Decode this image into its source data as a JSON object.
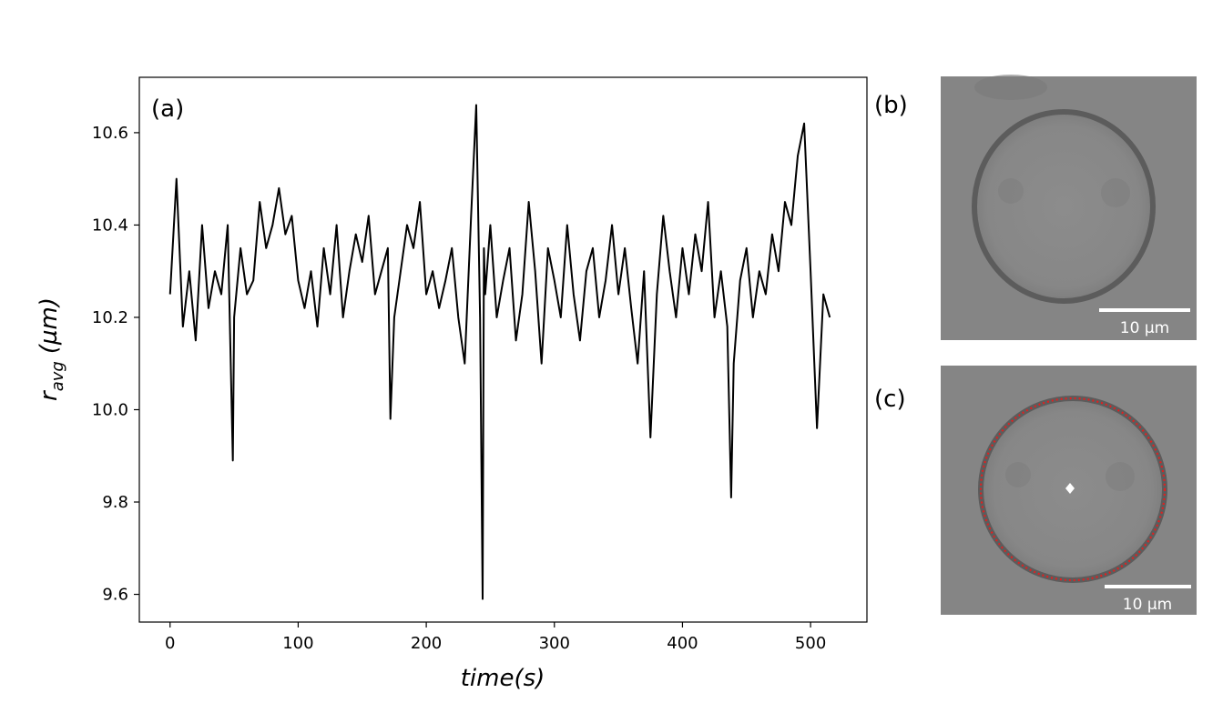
{
  "chart_data": {
    "type": "line",
    "xlabel": "time(s)",
    "ylabel_main": "r",
    "ylabel_sub": "avg",
    "ylabel_unit": "(µm)",
    "xlim": [
      -24,
      544
    ],
    "ylim": [
      9.54,
      10.72
    ],
    "x_ticks": [
      0,
      100,
      200,
      300,
      400,
      500
    ],
    "y_ticks": [
      9.6,
      9.8,
      10.0,
      10.2,
      10.4,
      10.6
    ],
    "y_tick_labels": [
      "9.6",
      "9.8",
      "10.0",
      "10.2",
      "10.4",
      "10.6"
    ],
    "grid": false,
    "series": [
      {
        "color": "#000000",
        "x": [
          0,
          5,
          10,
          15,
          20,
          25,
          30,
          35,
          40,
          45,
          49,
          50,
          55,
          60,
          65,
          70,
          75,
          80,
          85,
          90,
          95,
          100,
          105,
          110,
          115,
          120,
          125,
          130,
          135,
          140,
          145,
          150,
          155,
          160,
          165,
          170,
          172,
          175,
          180,
          185,
          190,
          195,
          200,
          205,
          210,
          215,
          220,
          225,
          230,
          235,
          239,
          242,
          244,
          245,
          246,
          250,
          255,
          260,
          265,
          270,
          275,
          280,
          285,
          290,
          295,
          300,
          305,
          310,
          315,
          320,
          325,
          330,
          335,
          340,
          345,
          350,
          355,
          360,
          365,
          370,
          375,
          380,
          385,
          390,
          395,
          400,
          405,
          410,
          415,
          420,
          425,
          430,
          435,
          438,
          440,
          445,
          450,
          455,
          460,
          465,
          470,
          475,
          480,
          485,
          490,
          495,
          500,
          505,
          510,
          515
        ],
        "values": [
          10.25,
          10.5,
          10.18,
          10.3,
          10.15,
          10.4,
          10.22,
          10.3,
          10.25,
          10.4,
          9.89,
          10.2,
          10.35,
          10.25,
          10.28,
          10.45,
          10.35,
          10.4,
          10.48,
          10.38,
          10.42,
          10.28,
          10.22,
          10.3,
          10.18,
          10.35,
          10.25,
          10.4,
          10.2,
          10.3,
          10.38,
          10.32,
          10.42,
          10.25,
          10.3,
          10.35,
          9.98,
          10.2,
          10.3,
          10.4,
          10.35,
          10.45,
          10.25,
          10.3,
          10.22,
          10.28,
          10.35,
          10.2,
          10.1,
          10.42,
          10.66,
          10.2,
          9.59,
          10.35,
          10.25,
          10.4,
          10.2,
          10.28,
          10.35,
          10.15,
          10.25,
          10.45,
          10.3,
          10.1,
          10.35,
          10.28,
          10.2,
          10.4,
          10.25,
          10.15,
          10.3,
          10.35,
          10.2,
          10.28,
          10.4,
          10.25,
          10.35,
          10.22,
          10.1,
          10.3,
          9.94,
          10.25,
          10.42,
          10.3,
          10.2,
          10.35,
          10.25,
          10.38,
          10.3,
          10.45,
          10.2,
          10.3,
          10.18,
          9.81,
          10.1,
          10.28,
          10.35,
          10.2,
          10.3,
          10.25,
          10.38,
          10.3,
          10.45,
          10.4,
          10.55,
          10.62,
          10.3,
          9.96,
          10.25,
          10.2
        ]
      }
    ]
  },
  "panels": {
    "a_label": "(a)",
    "b_label": "(b)",
    "c_label": "(c)",
    "b_scale": "10 µm",
    "c_scale": "10 µm"
  }
}
